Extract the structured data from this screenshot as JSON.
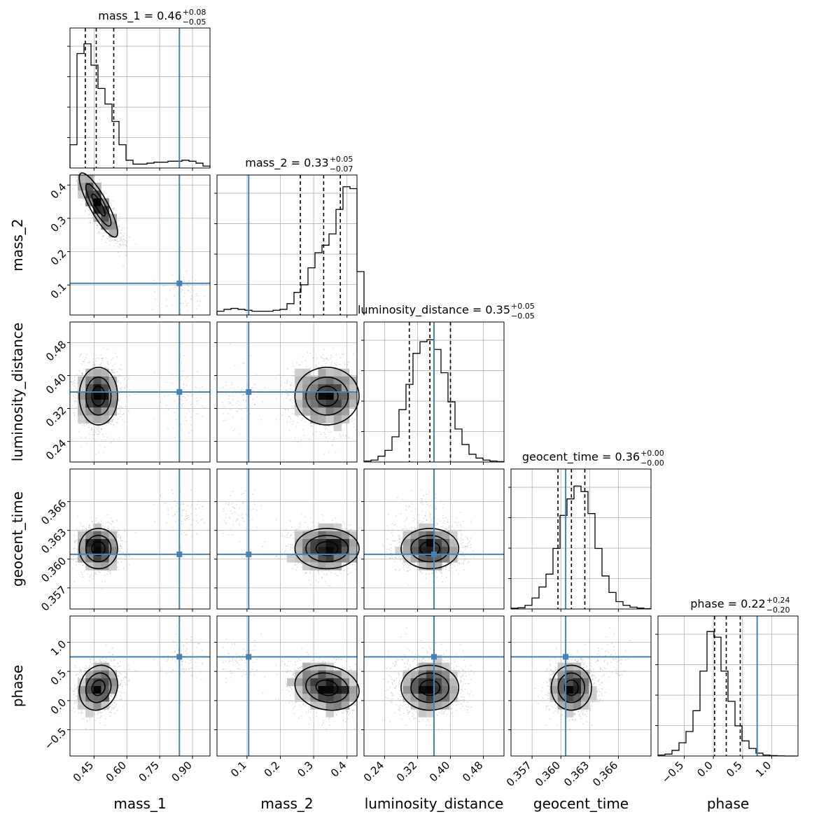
{
  "chart_data": {
    "type": "corner",
    "parameters": [
      "mass_1",
      "mass_2",
      "luminosity_distance",
      "geocent_time",
      "phase"
    ],
    "axis_labels": [
      "mass_1",
      "mass_2",
      "luminosity_distance",
      "geocent_time",
      "phase"
    ],
    "ranges": [
      [
        0.34,
        0.98
      ],
      [
        0.01,
        0.43
      ],
      [
        0.19,
        0.53
      ],
      [
        0.3548,
        0.3694
      ],
      [
        -0.95,
        1.45
      ]
    ],
    "ticks": [
      {
        "values": [
          0.45,
          0.6,
          0.75,
          0.9
        ],
        "labels": [
          "0.45",
          "0.60",
          "0.75",
          "0.90"
        ]
      },
      {
        "values": [
          0.1,
          0.2,
          0.3,
          0.4
        ],
        "labels": [
          "0.1",
          "0.2",
          "0.3",
          "0.4"
        ]
      },
      {
        "values": [
          0.24,
          0.32,
          0.4,
          0.48
        ],
        "labels": [
          "0.24",
          "0.32",
          "0.40",
          "0.48"
        ]
      },
      {
        "values": [
          0.357,
          0.36,
          0.363,
          0.366
        ],
        "labels": [
          "0.357",
          "0.360",
          "0.363",
          "0.366"
        ]
      },
      {
        "values": [
          -0.5,
          0.0,
          0.5,
          1.0
        ],
        "labels": [
          "−0.5",
          "0.0",
          "0.5",
          "1.0"
        ]
      }
    ],
    "titles": [
      {
        "text": "mass_1 = 0.46",
        "plus": "+0.08",
        "minus": "−0.05"
      },
      {
        "text": "mass_2 = 0.33",
        "plus": "+0.05",
        "minus": "−0.07"
      },
      {
        "text": "luminosity_distance = 0.35",
        "plus": "+0.05",
        "minus": "−0.05"
      },
      {
        "text": "geocent_time = 0.36",
        "plus": "+0.00",
        "minus": "−0.00"
      },
      {
        "text": "phase = 0.22",
        "plus": "+0.24",
        "minus": "−0.20"
      }
    ],
    "truths": [
      0.84,
      0.105,
      0.36,
      0.3605,
      0.75
    ],
    "quantiles": [
      [
        0.41,
        0.46,
        0.54
      ],
      [
        0.26,
        0.33,
        0.38
      ],
      [
        0.3,
        0.35,
        0.4
      ],
      [
        0.3597,
        0.3611,
        0.3625
      ],
      [
        0.02,
        0.22,
        0.46
      ]
    ],
    "histograms": [
      {
        "edges_start": 0.34,
        "bin_width": 0.032,
        "counts": [
          0.12,
          0.59,
          0.64,
          0.53,
          0.41,
          0.33,
          0.24,
          0.12,
          0.04,
          0.02,
          0.02,
          0.025,
          0.03,
          0.03,
          0.035,
          0.035,
          0.04,
          0.035,
          0.025,
          0.01
        ]
      },
      {
        "edges_start": 0.01,
        "bin_width": 0.021,
        "counts": [
          0.02,
          0.03,
          0.035,
          0.03,
          0.025,
          0.02,
          0.02,
          0.02,
          0.025,
          0.03,
          0.06,
          0.12,
          0.16,
          0.25,
          0.33,
          0.37,
          0.43,
          0.56,
          0.68,
          0.67,
          0.23
        ]
      },
      {
        "edges_start": 0.19,
        "bin_width": 0.017,
        "counts": [
          0.005,
          0.01,
          0.03,
          0.06,
          0.13,
          0.27,
          0.4,
          0.56,
          0.62,
          0.63,
          0.58,
          0.46,
          0.31,
          0.17,
          0.09,
          0.04,
          0.02,
          0.01,
          0.005,
          0.002
        ]
      },
      {
        "edges_start": 0.3548,
        "bin_width": 0.00073,
        "counts": [
          0.004,
          0.007,
          0.02,
          0.06,
          0.12,
          0.19,
          0.33,
          0.51,
          0.6,
          0.67,
          0.64,
          0.52,
          0.33,
          0.18,
          0.09,
          0.04,
          0.02,
          0.01,
          0.005,
          0.002
        ]
      },
      {
        "edges_start": -0.95,
        "bin_width": 0.12,
        "counts": [
          0.005,
          0.01,
          0.03,
          0.07,
          0.13,
          0.24,
          0.45,
          0.66,
          0.63,
          0.45,
          0.29,
          0.16,
          0.08,
          0.04,
          0.015,
          0.005,
          0.002,
          0.001,
          0.0,
          0.0
        ]
      }
    ],
    "histogram_max": [
      0.7,
      0.72,
      0.7,
      0.74,
      0.72
    ],
    "means": [
      0.47,
      0.34,
      0.35,
      0.3611,
      0.22
    ],
    "sds": [
      0.05,
      0.055,
      0.04,
      0.0012,
      0.22
    ],
    "correlations": [
      {
        "pair": [
          1,
          0
        ],
        "rho": -0.85
      },
      {
        "pair": [
          4,
          0
        ],
        "rho": 0.15
      },
      {
        "pair": [
          4,
          1
        ],
        "rho": -0.15
      }
    ],
    "secondary_mode": {
      "mass_1": 0.85,
      "mass_2": 0.08,
      "geocent_time": 0.3648,
      "phase": 0.7,
      "weight": 0.05
    },
    "contour_levels": 3,
    "grid": true,
    "truth_color": "#4682b4",
    "line_color": "#000000",
    "sample_color": "#9a9a9a"
  }
}
